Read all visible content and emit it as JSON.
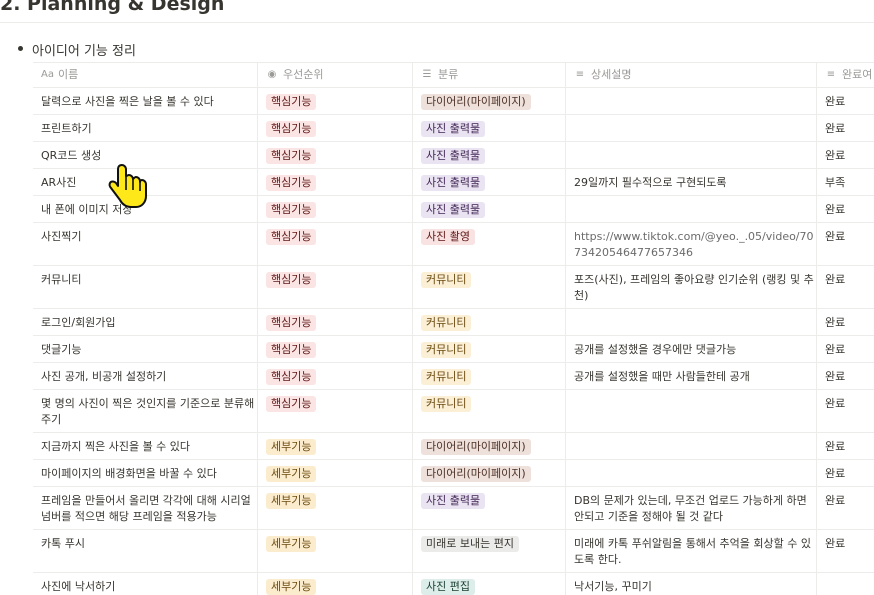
{
  "page": {
    "heading": "2. Planning & Design",
    "toggle_title": "아이디어 기능 정리"
  },
  "table": {
    "columns": [
      {
        "icon": "Aa",
        "icon_name": "text-title-icon",
        "label": "이름"
      },
      {
        "icon": "◉",
        "icon_name": "select-icon",
        "label": "우선순위"
      },
      {
        "icon": "☰",
        "icon_name": "multi-select-icon",
        "label": "분류"
      },
      {
        "icon": "≡",
        "icon_name": "text-property-icon",
        "label": "상세설명"
      },
      {
        "icon": "≡",
        "icon_name": "text-property-icon",
        "label": "완료여"
      }
    ],
    "tag_colors": {
      "핵심기능": {
        "bg": "#fbe4e4",
        "fg": "#5d1715"
      },
      "세부기능": {
        "bg": "#fbeccd",
        "fg": "#6b4a10"
      },
      "다이어리(마이페이지)": {
        "bg": "#eee0da",
        "fg": "#4d3228"
      },
      "사진 출력물": {
        "bg": "#eae4f2",
        "fg": "#412454"
      },
      "사진 촬영": {
        "bg": "#f9e2e2",
        "fg": "#5d1715"
      },
      "커뮤니티": {
        "bg": "#fbefd6",
        "fg": "#6b4a10"
      },
      "미래로 보내는 편지": {
        "bg": "#ebebea",
        "fg": "#37352f"
      },
      "사진 편집": {
        "bg": "#ddedea",
        "fg": "#183d2f"
      }
    },
    "rows": [
      {
        "name": "달력으로 사진을 찍은 날을 볼 수 있다",
        "priority": "핵심기능",
        "category": "다이어리(마이페이지)",
        "detail": "",
        "status": "완료"
      },
      {
        "name": "프린트하기",
        "priority": "핵심기능",
        "category": "사진 출력물",
        "detail": "",
        "status": "완료"
      },
      {
        "name": "QR코드 생성",
        "priority": "핵심기능",
        "category": "사진 출력물",
        "detail": "",
        "status": "완료"
      },
      {
        "name": "AR사진",
        "priority": "핵심기능",
        "category": "사진 출력물",
        "detail": "29일까지 필수적으로 구현되도록",
        "status": "부족"
      },
      {
        "name": "내 폰에 이미지 저장",
        "priority": "핵심기능",
        "category": "사진 출력물",
        "detail": "",
        "status": "완료"
      },
      {
        "name": "사진찍기",
        "priority": "핵심기능",
        "category": "사진 촬영",
        "detail": "https://www.tiktok.com/@yeo._.05/video/7073420546477657346",
        "status": "완료"
      },
      {
        "name": "커뮤니티",
        "priority": "핵심기능",
        "category": "커뮤니티",
        "detail": "포즈(사진), 프레임의 좋아요량 인기순위 (랭킹 및 추천)",
        "status": "완료"
      },
      {
        "name": "로그인/회원가입",
        "priority": "핵심기능",
        "category": "커뮤니티",
        "detail": "",
        "status": "완료"
      },
      {
        "name": "댓글기능",
        "priority": "핵심기능",
        "category": "커뮤니티",
        "detail": "공개를 설정했을 경우에만 댓글가능",
        "status": "완료"
      },
      {
        "name": "사진 공개, 비공개 설정하기",
        "priority": "핵심기능",
        "category": "커뮤니티",
        "detail": "공개를 설정했을 때만 사람들한테 공개",
        "status": "완료"
      },
      {
        "name": "몇 명의 사진이 찍은 것인지를 기준으로 분류해주기",
        "priority": "핵심기능",
        "category": "커뮤니티",
        "detail": "",
        "status": "완료"
      },
      {
        "name": "지금까지 찍은 사진을 볼 수 있다",
        "priority": "세부기능",
        "category": "다이어리(마이페이지)",
        "detail": "",
        "status": "완료"
      },
      {
        "name": "마이페이지의 배경화면을 바꿀 수 있다",
        "priority": "세부기능",
        "category": "다이어리(마이페이지)",
        "detail": "",
        "status": "완료"
      },
      {
        "name": "프레임을 만들어서 올리면 각각에 대해 시리얼 넘버를 적으면 해당 프레임을 적용가능",
        "priority": "세부기능",
        "category": "사진 출력물",
        "detail": "DB의 문제가 있는데, 무조건 업로드 가능하게 하면 안되고 기준을 정해야 될 것 같다",
        "status": "완료"
      },
      {
        "name": "카톡 푸시",
        "priority": "세부기능",
        "category": "미래로 보내는 편지",
        "detail": "미래에 카톡 푸쉬알림을 통해서 추억을 회상할 수 있도록 한다.",
        "status": "완료"
      },
      {
        "name": "사진에 낙서하기",
        "priority": "세부기능",
        "category": "사진 편집",
        "detail": "낙서기능, 꾸미기",
        "status": ""
      }
    ]
  },
  "cursor": {
    "icon": "hand-pointer-icon",
    "color": "#ffe81a"
  }
}
